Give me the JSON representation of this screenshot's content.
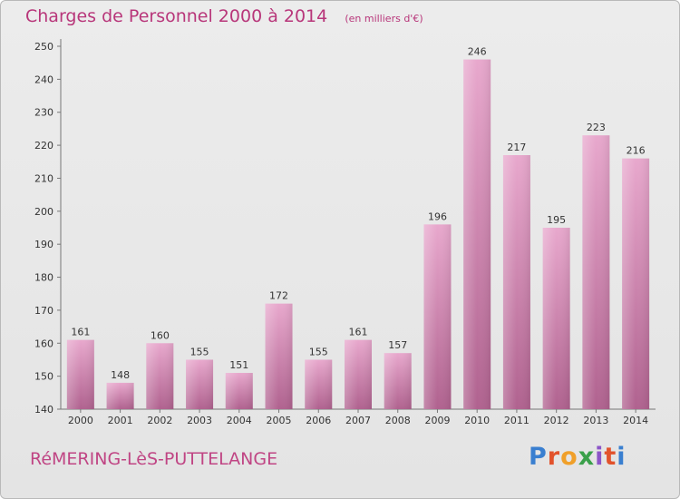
{
  "header": {
    "title": "Charges de Personnel 2000 à 2014",
    "unit_note": "(en milliers d'€)"
  },
  "footer": {
    "commune": "RéMERING-LèS-PUTTELANGE",
    "brand": "Proxiti",
    "brand_colors": [
      "#3a7fd0",
      "#e2522b",
      "#f0a02a",
      "#3aa04a",
      "#8c55c8",
      "#e2522b",
      "#3a7fd0"
    ]
  },
  "colors": {
    "bar_top": "#e8a8cd",
    "bar_bottom": "#b0628f",
    "label": "#333333",
    "title": "#b8367a"
  },
  "chart_data": {
    "type": "bar",
    "title": "Charges de Personnel 2000 à 2014",
    "subtitle": "(en milliers d'€)",
    "categories": [
      "2000",
      "2001",
      "2002",
      "2003",
      "2004",
      "2005",
      "2006",
      "2007",
      "2008",
      "2009",
      "2010",
      "2011",
      "2012",
      "2013",
      "2014"
    ],
    "values": [
      161,
      148,
      160,
      155,
      151,
      172,
      155,
      161,
      157,
      196,
      246,
      217,
      195,
      223,
      216
    ],
    "ylim": [
      140,
      250
    ],
    "yticks": [
      140,
      150,
      160,
      170,
      180,
      190,
      200,
      210,
      220,
      230,
      240,
      250
    ],
    "grid": false,
    "data_labels": true
  }
}
